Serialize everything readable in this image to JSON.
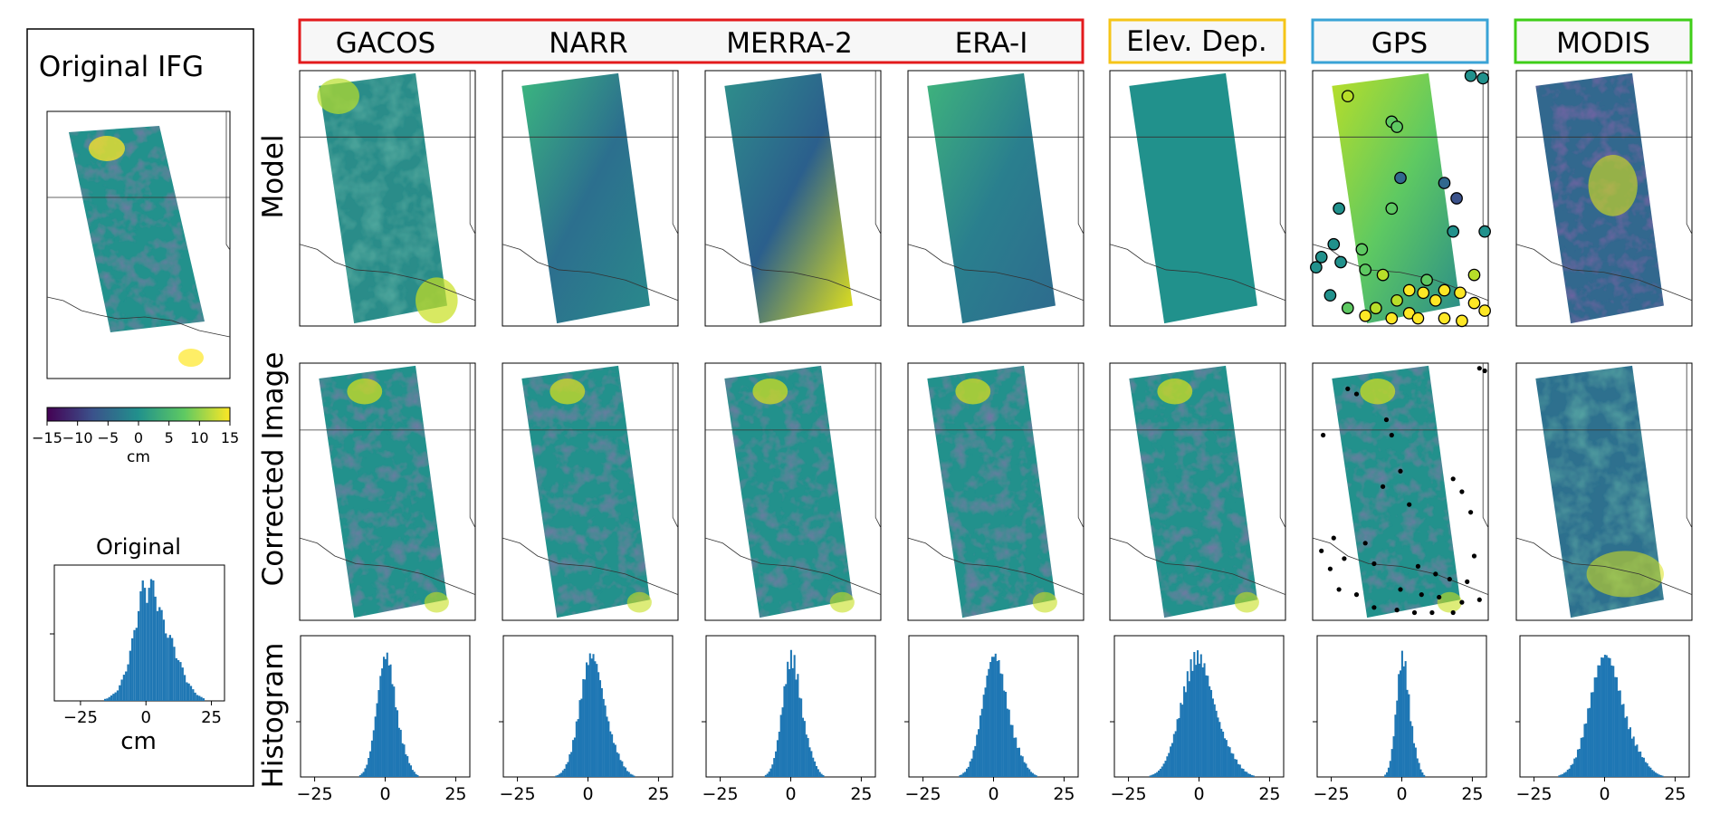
{
  "left_panel": {
    "title": "Original IFG",
    "colorbar": {
      "ticks": [
        "−15",
        "−10",
        "−5",
        "0",
        "5",
        "10",
        "15"
      ],
      "unit": "cm",
      "range": [
        -15,
        15
      ]
    },
    "histogram": {
      "title": "Original",
      "xticks": [
        "−25",
        "0",
        "25"
      ],
      "xlabel": "cm"
    }
  },
  "groups": [
    {
      "color": "#e31a1c",
      "labels": [
        "GACOS",
        "NARR",
        "MERRA-2",
        "ERA-I"
      ]
    },
    {
      "color": "#f5c518",
      "labels": [
        "Elev. Dep."
      ]
    },
    {
      "color": "#3aa3d6",
      "labels": [
        "GPS"
      ]
    },
    {
      "color": "#3fce18",
      "labels": [
        "MODIS"
      ]
    }
  ],
  "row_labels": [
    "Model",
    "Corrected Image",
    "Histogram"
  ],
  "hist_xticks": [
    "−25",
    "0",
    "25"
  ],
  "colors": {
    "hist": "#1f77b4",
    "colormap": "viridis"
  },
  "chart_data": [
    {
      "type": "histogram",
      "panel": "Original",
      "xlim": [
        -35,
        30
      ],
      "bins_center": [
        -15,
        -12,
        -9,
        -6,
        -3,
        0,
        3,
        6,
        9,
        12,
        15,
        18,
        21
      ],
      "values": [
        0.02,
        0.05,
        0.15,
        0.35,
        0.7,
        0.95,
        0.8,
        0.55,
        0.45,
        0.3,
        0.15,
        0.06,
        0.02
      ]
    },
    {
      "type": "histogram",
      "panel": "GACOS",
      "xlim": [
        -30,
        30
      ],
      "peak_center": 0,
      "spread": "narrow"
    },
    {
      "type": "histogram",
      "panel": "NARR",
      "xlim": [
        -30,
        30
      ],
      "peak_center": 1,
      "spread": "medium"
    },
    {
      "type": "histogram",
      "panel": "MERRA-2",
      "xlim": [
        -30,
        30
      ],
      "peak_center": 0,
      "spread": "narrow"
    },
    {
      "type": "histogram",
      "panel": "ERA-I",
      "xlim": [
        -30,
        30
      ],
      "peak_center": 0,
      "spread": "medium"
    },
    {
      "type": "histogram",
      "panel": "Elev. Dep.",
      "xlim": [
        -30,
        30
      ],
      "peak_center": -1,
      "spread": "wide"
    },
    {
      "type": "histogram",
      "panel": "GPS",
      "xlim": [
        -30,
        30
      ],
      "peak_center": 0,
      "spread": "very narrow"
    },
    {
      "type": "histogram",
      "panel": "MODIS",
      "xlim": [
        -30,
        30
      ],
      "peak_center": 0,
      "spread": "wide"
    }
  ]
}
